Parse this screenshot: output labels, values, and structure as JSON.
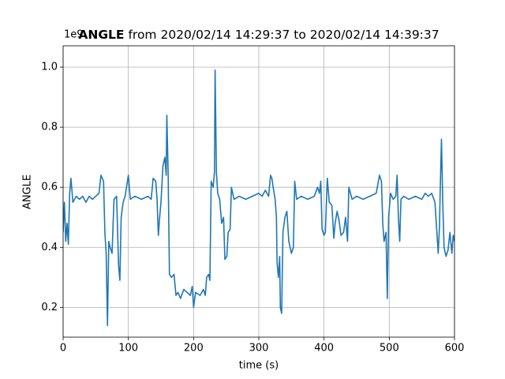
{
  "chart_data": {
    "type": "line",
    "title_variable": "ANGLE",
    "title": "from 2020/02/14 14:29:37 to 2020/02/14 14:39:37",
    "xlabel": "time (s)",
    "ylabel": "ANGLE",
    "y_offset_label": "1e9",
    "xlim": [
      0,
      600
    ],
    "xticks": [
      0,
      100,
      200,
      300,
      400,
      500,
      600
    ],
    "ylim": [
      0.101,
      1.071
    ],
    "yticks": [
      0.2,
      0.4,
      0.6,
      0.8,
      {
        "value": 1,
        "label": "1.0"
      }
    ],
    "grid": true,
    "x": [
      0,
      2,
      4,
      6,
      8,
      10,
      12,
      15,
      20,
      25,
      30,
      35,
      40,
      45,
      50,
      55,
      58,
      62,
      64,
      66,
      68,
      70,
      72,
      75,
      78,
      82,
      85,
      87,
      89,
      92,
      95,
      100,
      103,
      110,
      120,
      130,
      135,
      138,
      142,
      144,
      146,
      148,
      150,
      153,
      156,
      158,
      159,
      161,
      163,
      166,
      170,
      173,
      176,
      180,
      185,
      190,
      195,
      198,
      200,
      203,
      210,
      215,
      218,
      220,
      223,
      225,
      227,
      230,
      232,
      233,
      235,
      237,
      240,
      243,
      246,
      248,
      251,
      253,
      256,
      258,
      262,
      270,
      280,
      290,
      300,
      305,
      310,
      315,
      318,
      320,
      322,
      325,
      327,
      328,
      330,
      332,
      333,
      335,
      337,
      340,
      343,
      346,
      350,
      353,
      355,
      358,
      365,
      375,
      385,
      390,
      393,
      395,
      397,
      400,
      402,
      405,
      408,
      412,
      415,
      417,
      420,
      423,
      426,
      430,
      433,
      436,
      438,
      443,
      450,
      460,
      470,
      480,
      485,
      488,
      490,
      492,
      495,
      497,
      499,
      502,
      506,
      510,
      512,
      514,
      516,
      518,
      522,
      530,
      540,
      550,
      555,
      560,
      565,
      570,
      573,
      575,
      577,
      578,
      580,
      582,
      584,
      587,
      590,
      593,
      596,
      598,
      600
    ],
    "series": [
      {
        "name": "ANGLE",
        "color": "#1f77b4",
        "values": [
          0.45,
          0.55,
          0.42,
          0.48,
          0.41,
          0.58,
          0.63,
          0.55,
          0.57,
          0.56,
          0.57,
          0.55,
          0.57,
          0.56,
          0.57,
          0.58,
          0.64,
          0.62,
          0.45,
          0.38,
          0.14,
          0.42,
          0.4,
          0.38,
          0.56,
          0.57,
          0.34,
          0.29,
          0.5,
          0.55,
          0.57,
          0.64,
          0.56,
          0.57,
          0.56,
          0.57,
          0.56,
          0.63,
          0.62,
          0.56,
          0.44,
          0.5,
          0.55,
          0.67,
          0.7,
          0.64,
          0.84,
          0.65,
          0.31,
          0.3,
          0.31,
          0.24,
          0.25,
          0.23,
          0.26,
          0.25,
          0.24,
          0.27,
          0.2,
          0.25,
          0.24,
          0.26,
          0.24,
          0.3,
          0.31,
          0.29,
          0.62,
          0.6,
          0.65,
          0.99,
          0.65,
          0.58,
          0.56,
          0.48,
          0.5,
          0.36,
          0.37,
          0.45,
          0.46,
          0.6,
          0.56,
          0.57,
          0.56,
          0.57,
          0.58,
          0.57,
          0.59,
          0.57,
          0.64,
          0.63,
          0.6,
          0.56,
          0.5,
          0.35,
          0.3,
          0.37,
          0.2,
          0.18,
          0.45,
          0.5,
          0.52,
          0.42,
          0.38,
          0.4,
          0.62,
          0.56,
          0.57,
          0.56,
          0.57,
          0.6,
          0.58,
          0.62,
          0.46,
          0.44,
          0.45,
          0.63,
          0.55,
          0.54,
          0.43,
          0.48,
          0.52,
          0.49,
          0.44,
          0.45,
          0.5,
          0.42,
          0.6,
          0.56,
          0.57,
          0.56,
          0.57,
          0.58,
          0.64,
          0.62,
          0.48,
          0.42,
          0.45,
          0.23,
          0.5,
          0.58,
          0.56,
          0.57,
          0.64,
          0.5,
          0.42,
          0.56,
          0.57,
          0.56,
          0.57,
          0.56,
          0.58,
          0.57,
          0.58,
          0.55,
          0.45,
          0.38,
          0.47,
          0.58,
          0.76,
          0.55,
          0.4,
          0.37,
          0.39,
          0.45,
          0.38,
          0.44,
          0.42
        ]
      }
    ]
  }
}
